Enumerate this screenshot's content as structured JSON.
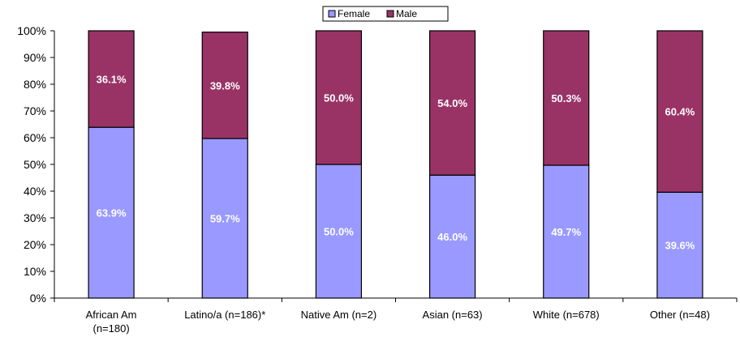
{
  "chart_data": {
    "type": "bar",
    "stacked": true,
    "categories": [
      [
        "African Am",
        "(n=180)"
      ],
      [
        "Latino/a (n=186)*"
      ],
      [
        "Native Am (n=2)"
      ],
      [
        "Asian (n=63)"
      ],
      [
        "White (n=678)"
      ],
      [
        "Other (n=48)"
      ]
    ],
    "series": [
      {
        "name": "Female",
        "color": "#9999ff",
        "values": [
          63.9,
          59.7,
          50.0,
          46.0,
          49.7,
          39.6
        ]
      },
      {
        "name": "Male",
        "color": "#993366",
        "values": [
          36.1,
          39.8,
          50.0,
          54.0,
          50.3,
          60.4
        ]
      }
    ],
    "data_labels": {
      "Female": [
        "63.9%",
        "59.7%",
        "50.0%",
        "46.0%",
        "49.7%",
        "39.6%"
      ],
      "Male": [
        "36.1%",
        "39.8%",
        "50.0%",
        "54.0%",
        "50.3%",
        "60.4%"
      ]
    },
    "ylim": [
      0,
      100
    ],
    "yticks": [
      "0%",
      "10%",
      "20%",
      "30%",
      "40%",
      "50%",
      "60%",
      "70%",
      "80%",
      "90%",
      "100%"
    ],
    "grid": false,
    "legend_position": "top"
  }
}
